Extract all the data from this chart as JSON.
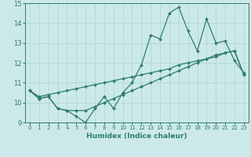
{
  "xlabel": "Humidex (Indice chaleur)",
  "x_values": [
    0,
    1,
    2,
    3,
    4,
    5,
    6,
    7,
    8,
    9,
    10,
    11,
    12,
    13,
    14,
    15,
    16,
    17,
    18,
    19,
    20,
    21,
    22,
    23
  ],
  "line1_y": [
    10.6,
    10.2,
    10.3,
    9.7,
    9.6,
    9.3,
    9.0,
    9.7,
    10.3,
    9.7,
    10.5,
    11.0,
    11.9,
    13.4,
    13.2,
    14.5,
    14.8,
    13.6,
    12.6,
    14.2,
    13.0,
    13.1,
    12.1,
    11.5
  ],
  "line2_y": [
    10.6,
    10.3,
    10.4,
    10.5,
    10.6,
    10.7,
    10.8,
    10.9,
    11.0,
    11.1,
    11.2,
    11.3,
    11.4,
    11.5,
    11.6,
    11.7,
    11.9,
    12.0,
    12.1,
    12.2,
    12.3,
    12.5,
    12.6,
    11.4
  ],
  "line3_y": [
    10.6,
    10.2,
    10.3,
    9.7,
    9.6,
    9.6,
    9.6,
    9.8,
    10.0,
    10.2,
    10.4,
    10.6,
    10.8,
    11.0,
    11.2,
    11.4,
    11.6,
    11.8,
    12.0,
    12.2,
    12.4,
    12.5,
    12.6,
    11.4
  ],
  "line_color": "#2e7d70",
  "bg_color": "#cce9e9",
  "grid_color": "#aad4d4",
  "ylim": [
    9.0,
    15.0
  ],
  "yticks": [
    9,
    10,
    11,
    12,
    13,
    14,
    15
  ],
  "xlim": [
    -0.5,
    23.5
  ]
}
